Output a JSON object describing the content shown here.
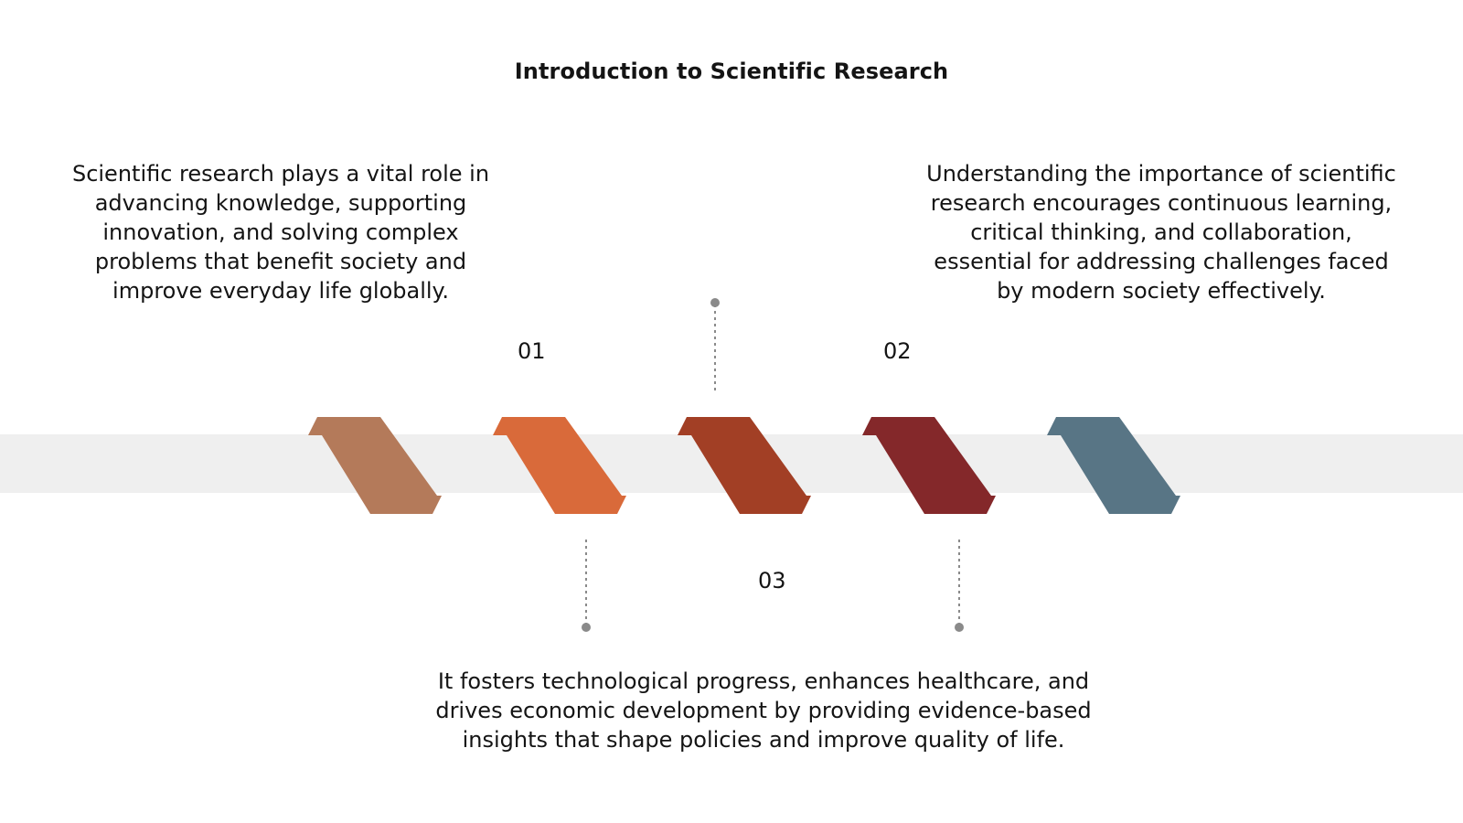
{
  "title": "Introduction to Scientific Research",
  "steps": [
    {
      "number": "01",
      "text": "Scientific research plays a vital role in advancing knowledge, supporting innovation, and solving complex problems that benefit society and improve everyday life globally."
    },
    {
      "number": "02",
      "text": "Understanding the importance of scientific research encourages continuous learning, critical thinking, and collaboration, essential for addressing challenges faced by modern society effectively."
    },
    {
      "number": "03",
      "text": "It fosters technological progress, enhances healthcare, and drives economic development by providing evidence-based insights that shape policies and improve quality of life."
    }
  ],
  "chevron_colors": [
    "#b47a5a",
    "#d96a3a",
    "#a23f25",
    "#84282a",
    "#587585"
  ],
  "connector_color": "#8a8a8a",
  "band_color": "#efefef"
}
